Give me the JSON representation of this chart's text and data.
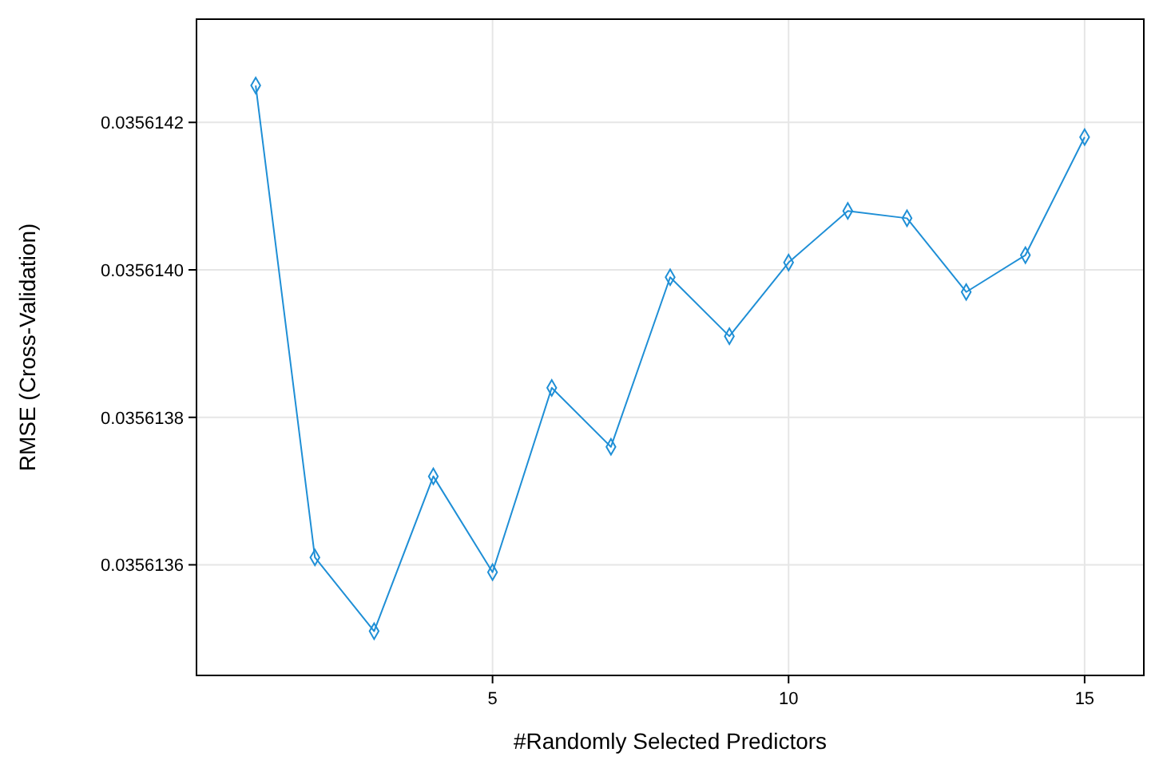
{
  "chart_data": {
    "type": "line",
    "xlabel": "#Randomly Selected Predictors",
    "ylabel": "RMSE (Cross-Validation)",
    "x": [
      1,
      2,
      3,
      4,
      5,
      6,
      7,
      8,
      9,
      10,
      11,
      12,
      13,
      14,
      15
    ],
    "series": [
      {
        "color": "#1f8fd6",
        "values": [
          0.03561425,
          0.03561361,
          0.03561351,
          0.03561372,
          0.03561359,
          0.03561384,
          0.03561376,
          0.03561399,
          0.03561391,
          0.03561401,
          0.03561408,
          0.03561407,
          0.03561397,
          0.03561402,
          0.03561418
        ]
      }
    ],
    "xlim": [
      0,
      16
    ],
    "xticks": [
      5,
      10,
      15
    ],
    "ylim": [
      0.03561345,
      0.03561434
    ],
    "yticks": [
      0.0356136,
      0.0356138,
      {
        "value": 0.035614,
        "label": "0.0356140"
      },
      0.0356142
    ],
    "grid": true,
    "marker": "diamond",
    "line_style": "solid"
  }
}
